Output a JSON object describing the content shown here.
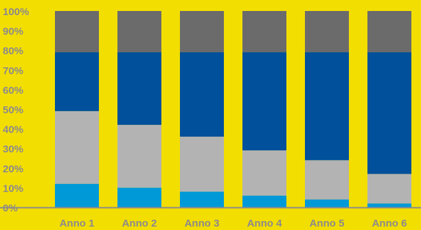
{
  "chart_data": {
    "type": "bar",
    "stacked": true,
    "normalized": true,
    "categories": [
      "Anno 1",
      "Anno 2",
      "Anno 3",
      "Anno 4",
      "Anno 5",
      "Anno 6"
    ],
    "y_ticks": [
      "0%",
      "10%",
      "20%",
      "30%",
      "40%",
      "50%",
      "60%",
      "70%",
      "80%",
      "90%",
      "100%"
    ],
    "ylim": [
      0,
      100
    ],
    "grid": false,
    "legend": "none",
    "series": [
      {
        "color": "#0099D8",
        "values": [
          12,
          10,
          8,
          6,
          4,
          2
        ]
      },
      {
        "color": "#B3B3B3",
        "values": [
          37,
          32,
          28,
          23,
          20,
          15
        ]
      },
      {
        "color": "#00509B",
        "values": [
          30,
          37,
          43,
          50,
          55,
          62
        ]
      },
      {
        "color": "#6B6B6B",
        "values": [
          21,
          21,
          21,
          21,
          21,
          21
        ]
      }
    ],
    "axis_color": "#8C8A8C",
    "background": "#F2DE00"
  }
}
